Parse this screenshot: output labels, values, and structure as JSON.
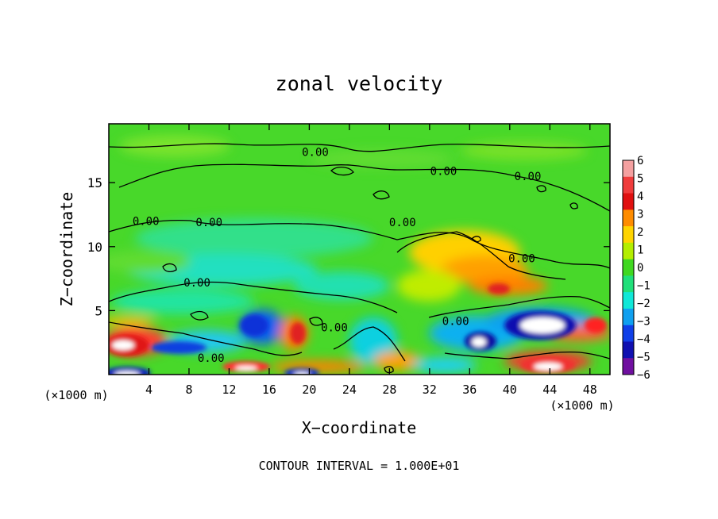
{
  "chart_data": {
    "type": "heatmap",
    "title": "zonal velocity",
    "xlabel": "X−coordinate",
    "ylabel": "Z−coordinate",
    "x_unit_label": "(×1000 m)",
    "y_unit_label": "(×1000 m)",
    "footer": "CONTOUR INTERVAL = 1.000E+01",
    "xlim": [
      0,
      50
    ],
    "ylim": [
      0,
      19.6
    ],
    "x_ticks": [
      4,
      8,
      12,
      16,
      20,
      24,
      28,
      32,
      36,
      40,
      44,
      48
    ],
    "y_ticks": [
      5,
      10,
      15
    ],
    "colorbar": {
      "levels": [
        6,
        5,
        4,
        3,
        2,
        1,
        0,
        -1,
        -2,
        -3,
        -4,
        -5,
        -6
      ],
      "level_labels": [
        "6",
        "5",
        "4",
        "3",
        "2",
        "1",
        "0",
        "−1",
        "−2",
        "−3",
        "−4",
        "−5",
        "−6"
      ],
      "colors": [
        "#f4a0a0",
        "#f03c3c",
        "#e01010",
        "#ff8c00",
        "#ffd400",
        "#b4ee00",
        "#40d820",
        "#20e07a",
        "#10e8d8",
        "#10a0f0",
        "#1040e8",
        "#1010b0",
        "#7010a0"
      ]
    },
    "contour_labels": [
      {
        "text": "0.00",
        "x": 20.6,
        "z": 17.4
      },
      {
        "text": "0.00",
        "x": 33.4,
        "z": 15.9
      },
      {
        "text": "0.00",
        "x": 41.8,
        "z": 15.5
      },
      {
        "text": "0.00",
        "x": 3.7,
        "z": 12.0
      },
      {
        "text": "0.00",
        "x": 10.0,
        "z": 11.9
      },
      {
        "text": "0.00",
        "x": 29.3,
        "z": 11.9
      },
      {
        "text": "0.00",
        "x": 41.2,
        "z": 9.1
      },
      {
        "text": "0.00",
        "x": 8.8,
        "z": 7.2
      },
      {
        "text": "0.00",
        "x": 34.6,
        "z": 4.2
      },
      {
        "text": "0.00",
        "x": 22.5,
        "z": 3.7
      },
      {
        "text": "0.00",
        "x": 10.2,
        "z": 1.3
      }
    ]
  }
}
